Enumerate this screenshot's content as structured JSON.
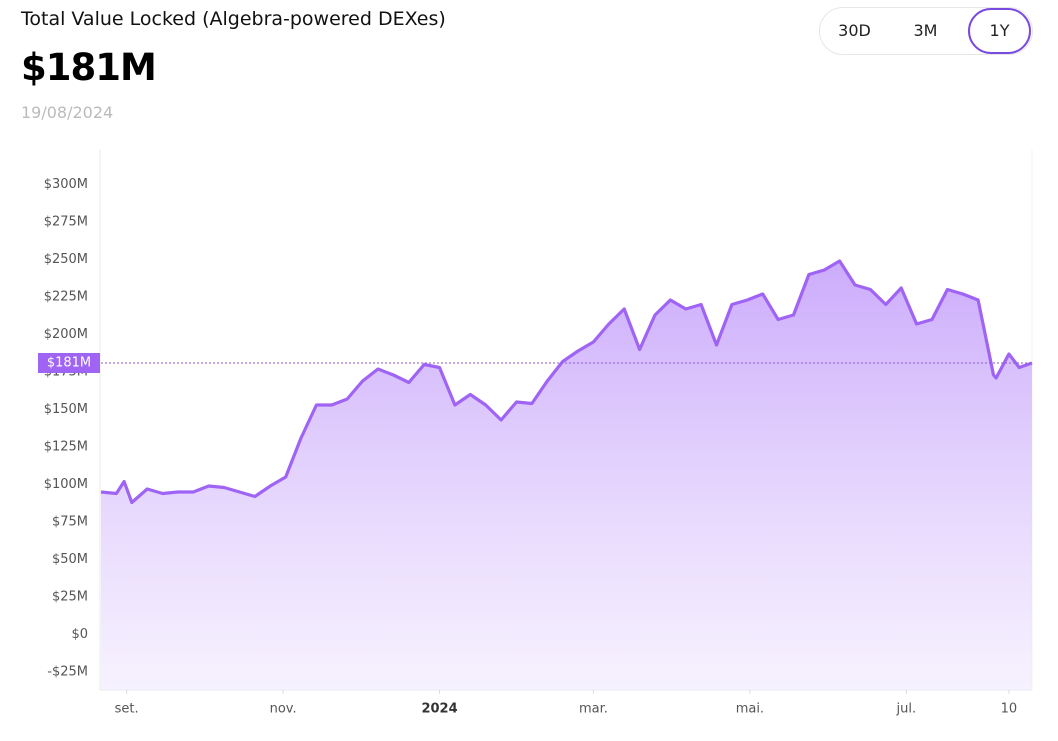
{
  "chart_data": {
    "type": "line",
    "title": "Total Value Locked (Algebra-powered DEXes)",
    "current": {
      "value": 181,
      "label": "$181M"
    },
    "date": "19/08/2024",
    "ranges": [
      "30D",
      "3M",
      "1Y"
    ],
    "selected_range": "1Y",
    "x": [
      "2023-08-22",
      "2023-08-28",
      "2023-08-31",
      "2023-09-03",
      "2023-09-09",
      "2023-09-15",
      "2023-09-21",
      "2023-09-27",
      "2023-10-03",
      "2023-10-09",
      "2023-10-15",
      "2023-10-21",
      "2023-10-27",
      "2023-11-02",
      "2023-11-08",
      "2023-11-14",
      "2023-11-20",
      "2023-11-26",
      "2023-12-02",
      "2023-12-08",
      "2023-12-14",
      "2023-12-20",
      "2023-12-26",
      "2024-01-01",
      "2024-01-07",
      "2024-01-13",
      "2024-01-19",
      "2024-01-25",
      "2024-01-31",
      "2024-02-06",
      "2024-02-12",
      "2024-02-18",
      "2024-02-24",
      "2024-03-01",
      "2024-03-07",
      "2024-03-13",
      "2024-03-19",
      "2024-03-25",
      "2024-03-31",
      "2024-04-06",
      "2024-04-12",
      "2024-04-18",
      "2024-04-24",
      "2024-04-30",
      "2024-05-06",
      "2024-05-12",
      "2024-05-18",
      "2024-05-24",
      "2024-05-30",
      "2024-06-05",
      "2024-06-11",
      "2024-06-17",
      "2024-06-23",
      "2024-06-29",
      "2024-07-05",
      "2024-07-11",
      "2024-07-17",
      "2024-07-23",
      "2024-07-29",
      "2024-08-04",
      "2024-08-05",
      "2024-08-10",
      "2024-08-14",
      "2024-08-19"
    ],
    "series": [
      {
        "name": "TVL",
        "color": "#a064f5",
        "values": [
          95,
          94,
          102,
          88,
          97,
          94,
          95,
          95,
          99,
          98,
          95,
          92,
          99,
          105,
          131,
          153,
          153,
          157,
          169,
          177,
          173,
          168,
          180,
          178,
          153,
          160,
          153,
          143,
          155,
          154,
          169,
          182,
          189,
          195,
          207,
          217,
          190,
          213,
          223,
          217,
          220,
          193,
          220,
          223,
          227,
          210,
          213,
          240,
          243,
          249,
          233,
          230,
          220,
          231,
          207,
          210,
          230,
          227,
          223,
          173,
          171,
          187,
          178,
          181
        ]
      }
    ],
    "xlim": [
      "2023-08-22",
      "2024-08-19"
    ],
    "xticks": [
      {
        "value": "2023-09-01",
        "label": "set."
      },
      {
        "value": "2023-11-01",
        "label": "nov."
      },
      {
        "value": "2024-01-01",
        "label": "2024"
      },
      {
        "value": "2024-03-01",
        "label": "mar."
      },
      {
        "value": "2024-05-01",
        "label": "mai."
      },
      {
        "value": "2024-07-01",
        "label": "jul."
      },
      {
        "value": "2024-08-10",
        "label": "10"
      }
    ],
    "ylim": [
      -37,
      323
    ],
    "yticks": [
      {
        "value": -25,
        "label": "-$25M"
      },
      {
        "value": 0,
        "label": "$0"
      },
      {
        "value": 25,
        "label": "$25M"
      },
      {
        "value": 50,
        "label": "$50M"
      },
      {
        "value": 75,
        "label": "$75M"
      },
      {
        "value": 100,
        "label": "$100M"
      },
      {
        "value": 125,
        "label": "$125M"
      },
      {
        "value": 150,
        "label": "$150M"
      },
      {
        "value": 175,
        "label": "$175M"
      },
      {
        "value": 200,
        "label": "$200M"
      },
      {
        "value": 225,
        "label": "$225M"
      },
      {
        "value": 250,
        "label": "$250M"
      },
      {
        "value": 275,
        "label": "$275M"
      },
      {
        "value": 300,
        "label": "$300M"
      }
    ]
  }
}
